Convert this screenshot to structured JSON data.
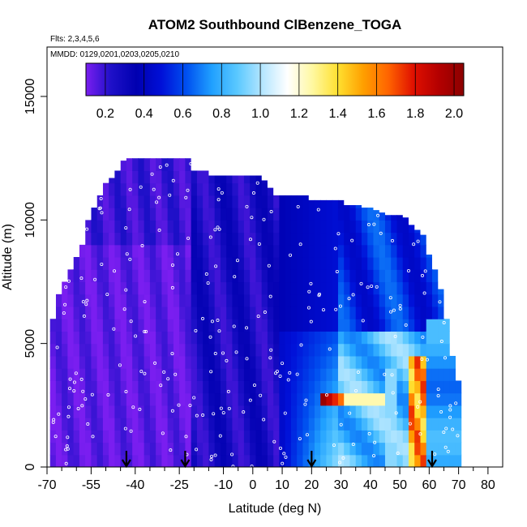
{
  "chart_data": {
    "type": "heatmap",
    "title": "ATOM2 Southbound ClBenzene_TOGA",
    "flights_label": "Flts: 2,3,4,5,6",
    "dates_label": "MMDD: 0129,0201,0203,0205,0210",
    "xlabel": "Latitude (deg N)",
    "ylabel": "Altitude (m)",
    "xlim": [
      -70,
      85
    ],
    "ylim": [
      0,
      17000
    ],
    "x_major_ticks": [
      -70,
      -55,
      -40,
      -25,
      -10,
      0,
      10,
      20,
      30,
      40,
      50,
      60,
      70,
      80
    ],
    "x_minor_ticks": [
      -65,
      -60,
      -50,
      -45,
      -35,
      -30,
      -20,
      -15,
      -5,
      5,
      15,
      25,
      35,
      45,
      55,
      65,
      75
    ],
    "y_ticks": [
      0,
      5000,
      10000,
      15000
    ],
    "colorbar": {
      "ticks": [
        "0.2",
        "0.4",
        "0.6",
        "0.8",
        "1.0",
        "1.2",
        "1.4",
        "1.6",
        "1.8",
        "2.0"
      ],
      "range": [
        0.1,
        2.05
      ],
      "colors": [
        "#7a1ef0",
        "#1e10c8",
        "#0000b0",
        "#0010d8",
        "#0050f0",
        "#20a0ff",
        "#5ac8ff",
        "#b4e6ff",
        "#ffffff",
        "#fff8a0",
        "#ffe030",
        "#ffa000",
        "#ff6400",
        "#e01000",
        "#b40000",
        "#8c0000"
      ]
    },
    "flight_arrows_lat": [
      -43,
      -23,
      20,
      61
    ],
    "profile": {
      "lat_edges": [
        -69,
        -67,
        -65,
        -63,
        -61,
        -59,
        -57,
        -55,
        -53,
        -51,
        -49,
        -47,
        -45,
        -43,
        -41,
        -39,
        -37,
        -35,
        -33,
        -31,
        -29,
        -27,
        -25,
        -23,
        -21,
        -19,
        -17,
        -15,
        -13,
        -11,
        -9,
        -7,
        -5,
        -3,
        -1,
        1,
        3,
        5,
        7,
        9,
        11,
        13,
        15,
        17,
        19,
        21,
        23,
        25,
        27,
        29,
        31,
        33,
        35,
        37,
        39,
        41,
        43,
        45,
        47,
        49,
        51,
        53,
        55,
        57,
        59,
        61,
        63,
        65,
        67,
        69,
        71
      ],
      "top_altitude_m": [
        6000,
        7000,
        7500,
        8000,
        8500,
        9000,
        10000,
        10500,
        11000,
        11500,
        11700,
        12000,
        12400,
        12500,
        12500,
        12500,
        12500,
        12500,
        12500,
        12500,
        12500,
        12500,
        12500,
        12500,
        12000,
        12000,
        12000,
        11800,
        11800,
        11800,
        11800,
        11800,
        11800,
        11800,
        11800,
        11800,
        11600,
        11300,
        11000,
        11000,
        11000,
        11000,
        11000,
        11000,
        10800,
        10800,
        10800,
        10800,
        10800,
        10800,
        10600,
        10600,
        10600,
        10500,
        10500,
        10400,
        10300,
        10200,
        10200,
        10200,
        10100,
        9800,
        9600,
        9400,
        8600,
        8000,
        7200,
        6000,
        4500,
        3500
      ]
    },
    "enhanced_features": [
      {
        "lat_range": [
          24,
          30
        ],
        "alt_range_m": [
          2400,
          3200
        ],
        "value": 2.0
      },
      {
        "lat_range": [
          30,
          45
        ],
        "alt_range_m": [
          2600,
          3100
        ],
        "value": 1.3
      },
      {
        "lat_range": [
          53,
          59
        ],
        "alt_range_m": [
          0,
          4500
        ],
        "value": 1.7
      },
      {
        "lat_range": [
          10,
          50
        ],
        "alt_range_m": [
          0,
          5000
        ],
        "value": 0.9
      },
      {
        "lat_range": [
          30,
          56
        ],
        "alt_range_m": [
          5000,
          10000
        ],
        "value": 0.65
      },
      {
        "lat_range": [
          56,
          70
        ],
        "alt_range_m": [
          0,
          8000
        ],
        "value": 0.8
      },
      {
        "lat_range": [
          -69,
          -20
        ],
        "alt_range_m": [
          0,
          12500
        ],
        "value": 0.15
      },
      {
        "lat_range": [
          -20,
          10
        ],
        "alt_range_m": [
          0,
          12000
        ],
        "value": 0.3
      }
    ]
  }
}
